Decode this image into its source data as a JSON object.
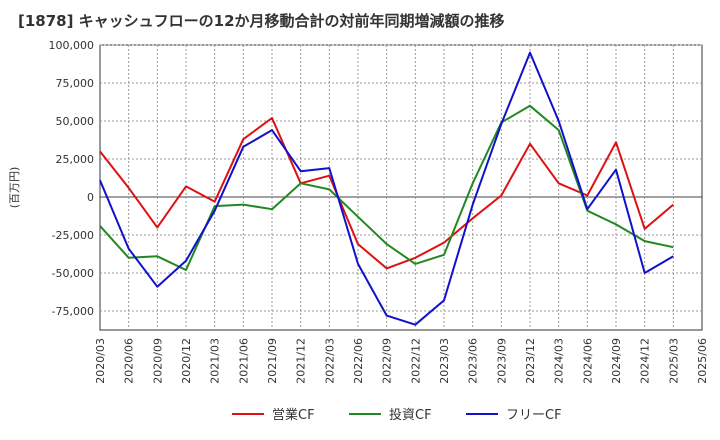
{
  "chart_data": {
    "type": "line",
    "title": "[1878]  キャッシュフローの12か月移動合計の対前年同期増減額の推移",
    "ylabel": "(百万円)",
    "xlabel": "",
    "ylim": [
      -87500,
      100000
    ],
    "yticks": [
      100000,
      75000,
      50000,
      25000,
      0,
      -25000,
      -50000,
      -75000
    ],
    "ytick_labels": [
      "100,000",
      "75,000",
      "50,000",
      "25,000",
      "0",
      "-25,000",
      "-50,000",
      "-75,000"
    ],
    "grid": true,
    "legend_position": "bottom",
    "x": [
      "2020/03",
      "2020/06",
      "2020/09",
      "2020/12",
      "2021/03",
      "2021/06",
      "2021/09",
      "2021/12",
      "2022/03",
      "2022/06",
      "2022/09",
      "2022/12",
      "2023/03",
      "2023/06",
      "2023/09",
      "2023/12",
      "2024/03",
      "2024/06",
      "2024/09",
      "2024/12",
      "2025/03",
      "2025/06"
    ],
    "series": [
      {
        "name": "営業CF",
        "color": "#dd1111",
        "values": [
          30000,
          6000,
          -20000,
          7000,
          -3000,
          38000,
          52000,
          9000,
          14000,
          -31000,
          -47000,
          -40000,
          -30000,
          -14000,
          1000,
          35000,
          9000,
          1000,
          36000,
          -21000,
          -5000,
          null
        ]
      },
      {
        "name": "投資CF",
        "color": "#228822",
        "values": [
          -19000,
          -40000,
          -39000,
          -48000,
          -6000,
          -5000,
          -8000,
          9000,
          5000,
          -13000,
          -31000,
          -44000,
          -38000,
          9000,
          49000,
          60000,
          44000,
          -9000,
          -18000,
          -29000,
          -33000,
          null
        ]
      },
      {
        "name": "フリーCF",
        "color": "#1111cc",
        "values": [
          11000,
          -34000,
          -59000,
          -42000,
          -9000,
          33000,
          44000,
          17000,
          19000,
          -44000,
          -78000,
          -84000,
          -68000,
          -5000,
          48000,
          95000,
          50000,
          -8000,
          18000,
          -50000,
          -39000,
          null
        ]
      }
    ]
  }
}
